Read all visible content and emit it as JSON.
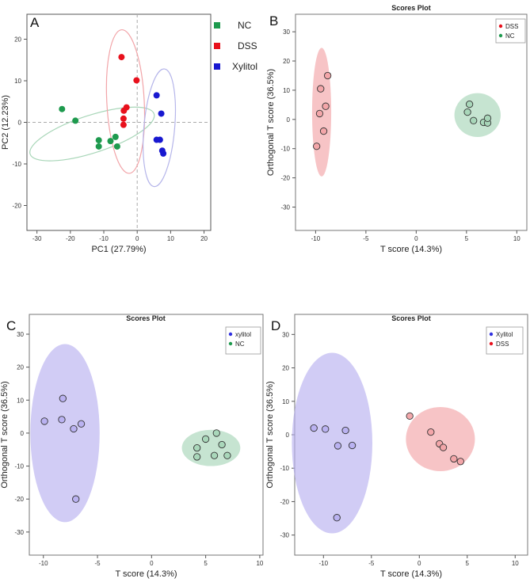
{
  "chart_data": [
    {
      "panel": "A",
      "type": "scatter",
      "title": "",
      "xlabel": "PC1 (27.79%)",
      "ylabel": "PC2 (12.23%)",
      "xlim": [
        -33,
        22
      ],
      "ylim": [
        -26,
        26
      ],
      "xticks": [
        -30,
        -20,
        -10,
        0,
        10,
        20
      ],
      "yticks": [
        -20,
        -10,
        0,
        10,
        20
      ],
      "reference_lines": {
        "x": 0,
        "y": 0,
        "style": "dashed"
      },
      "legend": {
        "position": "top-right",
        "entries": [
          "NC",
          "DSS",
          "Xylitol"
        ]
      },
      "series": [
        {
          "name": "NC",
          "color": "#1e9a4e",
          "points": [
            [
              -22.5,
              3.2
            ],
            [
              -18.5,
              0.4
            ],
            [
              -11.5,
              -4.3
            ],
            [
              -11.5,
              -5.8
            ],
            [
              -8,
              -4.5
            ],
            [
              -6.5,
              -3.5
            ],
            [
              -6,
              -5.8
            ]
          ],
          "ellipse": {
            "center": [
              -13.5,
              -2.8
            ],
            "rx": 19.5,
            "ry": 4.5,
            "angle_deg": -18,
            "color": "#a8d6b8"
          }
        },
        {
          "name": "DSS",
          "color": "#e8101c",
          "points": [
            [
              -4.7,
              15.7
            ],
            [
              -0.2,
              10.1
            ],
            [
              -3.2,
              3.6
            ],
            [
              -4,
              2.8
            ],
            [
              -4.1,
              0.9
            ],
            [
              -4.1,
              -0.6
            ]
          ],
          "ellipse": {
            "center": [
              -3.5,
              5
            ],
            "rx": 5.6,
            "ry": 17.3,
            "angle_deg": -3,
            "color": "#f2a4a8"
          }
        },
        {
          "name": "Xylitol",
          "color": "#1818d0",
          "points": [
            [
              5.8,
              6.5
            ],
            [
              7.2,
              2.1
            ],
            [
              5.8,
              -4.2
            ],
            [
              6.8,
              -4.2
            ],
            [
              7.5,
              -6.8
            ],
            [
              7.8,
              -7.5
            ]
          ],
          "ellipse": {
            "center": [
              6.6,
              -1.3
            ],
            "rx": 4.6,
            "ry": 14.2,
            "angle_deg": 5,
            "color": "#b6b6ea"
          }
        }
      ]
    },
    {
      "panel": "B",
      "type": "scatter",
      "title": "Scores Plot",
      "xlabel": "T score (14.3%)",
      "ylabel": "Orthogonal T score (36.5%)",
      "xlim": [
        -12,
        11
      ],
      "ylim": [
        -38,
        36
      ],
      "xticks": [
        -10,
        -5,
        0,
        5,
        10
      ],
      "yticks": [
        -30,
        -20,
        -10,
        0,
        10,
        20,
        30
      ],
      "legend": {
        "position": "top-right",
        "entries": [
          "DSS",
          "NC"
        ]
      },
      "series": [
        {
          "name": "DSS",
          "color": "#e8101c",
          "points": [
            [
              -8.8,
              15
            ],
            [
              -9.5,
              10.5
            ],
            [
              -9,
              4.5
            ],
            [
              -9.6,
              2
            ],
            [
              -9.2,
              -4
            ],
            [
              -9.9,
              -9.2
            ]
          ],
          "ellipse": {
            "center": [
              -9.4,
              2.5
            ],
            "rx": 0.95,
            "ry": 22,
            "angle_deg": 0,
            "color": "#f2a4a8"
          }
        },
        {
          "name": "NC",
          "color": "#1e9a4e",
          "points": [
            [
              5.3,
              5.2
            ],
            [
              5.1,
              2.5
            ],
            [
              5.7,
              -0.4
            ],
            [
              6.7,
              -1
            ],
            [
              7.1,
              -1.2
            ],
            [
              7.1,
              0.4
            ]
          ],
          "ellipse": {
            "center": [
              6.1,
              1.5
            ],
            "rx": 2.3,
            "ry": 7.5,
            "angle_deg": 0,
            "color": "#a8d6b8"
          }
        }
      ]
    },
    {
      "panel": "C",
      "type": "scatter",
      "title": "Scores Plot",
      "xlabel": "T score (14.3%)",
      "ylabel": "Orthogonal T score (36.5%)",
      "xlim": [
        -11.3,
        10.3
      ],
      "ylim": [
        -37,
        36
      ],
      "xticks": [
        -10,
        -5,
        0,
        5,
        10
      ],
      "yticks": [
        -30,
        -20,
        -10,
        0,
        10,
        20,
        30
      ],
      "legend": {
        "position": "top-right",
        "entries": [
          "xylitol",
          "NC"
        ]
      },
      "series": [
        {
          "name": "xylitol",
          "color": "#3030e0",
          "points": [
            [
              -8.2,
              10.5
            ],
            [
              -9.9,
              3.6
            ],
            [
              -8.3,
              4.1
            ],
            [
              -6.5,
              2.8
            ],
            [
              -7.2,
              1.3
            ],
            [
              -7,
              -20
            ]
          ],
          "ellipse": {
            "center": [
              -8,
              0
            ],
            "rx": 3.2,
            "ry": 27,
            "angle_deg": 0,
            "color": "#b8b0f0"
          }
        },
        {
          "name": "NC",
          "color": "#1e9a4e",
          "points": [
            [
              6,
              0
            ],
            [
              5,
              -1.8
            ],
            [
              6.5,
              -3.5
            ],
            [
              7,
              -6.8
            ],
            [
              4.2,
              -4.5
            ],
            [
              4.2,
              -7.2
            ],
            [
              5.8,
              -6.8
            ]
          ],
          "ellipse": {
            "center": [
              5.5,
              -4.5
            ],
            "rx": 2.7,
            "ry": 5.5,
            "angle_deg": 0,
            "color": "#a8d6b8"
          }
        }
      ]
    },
    {
      "panel": "D",
      "type": "scatter",
      "title": "Scores Plot",
      "xlabel": "T score (14.3%)",
      "ylabel": "Orthogonal T score (36.5%)",
      "xlim": [
        -13,
        11.3
      ],
      "ylim": [
        -36,
        36
      ],
      "xticks": [
        -10,
        -5,
        0,
        5,
        10
      ],
      "yticks": [
        -30,
        -20,
        -10,
        0,
        10,
        20,
        30
      ],
      "legend": {
        "position": "top-right",
        "entries": [
          "Xylitol",
          "DSS"
        ]
      },
      "series": [
        {
          "name": "Xylitol",
          "color": "#3030e0",
          "points": [
            [
              -11,
              2
            ],
            [
              -9.8,
              1.7
            ],
            [
              -8.5,
              -3.3
            ],
            [
              -7.7,
              1.3
            ],
            [
              -7,
              -3.2
            ],
            [
              -8.6,
              -24.8
            ]
          ],
          "ellipse": {
            "center": [
              -9.1,
              -2.5
            ],
            "rx": 4.2,
            "ry": 27,
            "angle_deg": 0,
            "color": "#b8b0f0"
          }
        },
        {
          "name": "DSS",
          "color": "#e8101c",
          "points": [
            [
              -1,
              5.6
            ],
            [
              1.2,
              0.8
            ],
            [
              2.1,
              -2.7
            ],
            [
              2.5,
              -3.8
            ],
            [
              3.6,
              -7.2
            ],
            [
              4.3,
              -8
            ]
          ],
          "ellipse": {
            "center": [
              2.2,
              -1.3
            ],
            "rx": 3.6,
            "ry": 9.6,
            "angle_deg": 0,
            "color": "#f2a4a8"
          }
        }
      ]
    }
  ]
}
